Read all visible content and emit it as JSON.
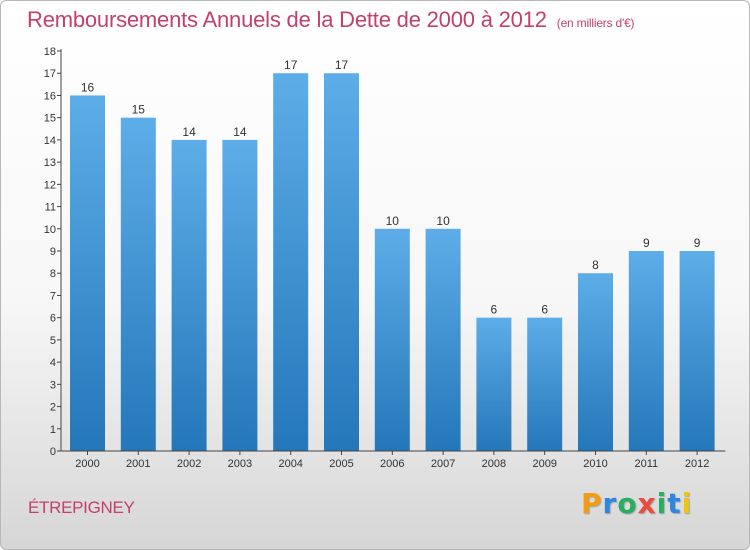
{
  "title": "Remboursements Annuels de la Dette de 2000 à 2012",
  "unit_note": "(en milliers d'€)",
  "place_name": "ÉTREPIGNEY",
  "logo": {
    "letters": [
      "P",
      "r",
      "o",
      "x",
      "i",
      "t",
      "i"
    ],
    "colors": [
      "#f39c12",
      "#2e86de",
      "#27ae60",
      "#e74c3c",
      "#27ae60",
      "#2e86de",
      "#f1c40f"
    ]
  },
  "colors": {
    "title": "#c23f6e",
    "bar_light": "#5dade8",
    "bar_dark": "#2477b9",
    "axis": "#444444"
  },
  "chart_data": {
    "type": "bar",
    "title": "Remboursements Annuels de la Dette de 2000 à 2012",
    "categories": [
      "2000",
      "2001",
      "2002",
      "2003",
      "2004",
      "2005",
      "2006",
      "2007",
      "2008",
      "2009",
      "2010",
      "2011",
      "2012"
    ],
    "values": [
      16,
      15,
      14,
      14,
      17,
      17,
      10,
      10,
      6,
      6,
      8,
      9,
      9
    ],
    "ylim": [
      0,
      18
    ],
    "yticks": [
      0,
      1,
      2,
      3,
      4,
      5,
      6,
      7,
      8,
      9,
      10,
      11,
      12,
      13,
      14,
      15,
      16,
      17,
      18
    ],
    "grid": false,
    "data_labels": true
  }
}
